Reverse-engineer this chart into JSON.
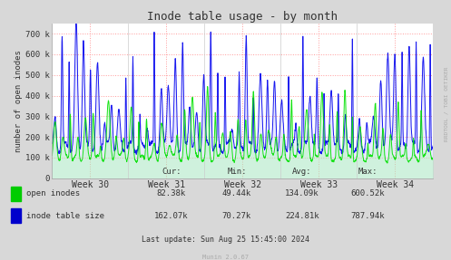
{
  "title": "Inode table usage - by month",
  "ylabel": "number of open inodes",
  "ylim": [
    0,
    750000
  ],
  "yticks": [
    0,
    100000,
    200000,
    300000,
    400000,
    500000,
    600000,
    700000
  ],
  "ytick_labels": [
    "0",
    "100 k",
    "200 k",
    "300 k",
    "400 k",
    "500 k",
    "600 k",
    "700 k"
  ],
  "week_labels": [
    "Week 30",
    "Week 31",
    "Week 32",
    "Week 33",
    "Week 34"
  ],
  "bg_color": "#d8d8d8",
  "plot_bg_color": "#ffffff",
  "grid_color": "#ff8080",
  "green_color": "#00e000",
  "blue_color": "#0000ee",
  "blue_fill_color": "#aaaaff",
  "green_fill_color": "#aaffaa",
  "legend_items": [
    "open inodes",
    "inode table size"
  ],
  "legend_colors": [
    "#00cc00",
    "#0000cc"
  ],
  "stats_cur": [
    "82.38k",
    "162.07k"
  ],
  "stats_min": [
    "49.44k",
    "70.27k"
  ],
  "stats_avg": [
    "134.09k",
    "224.81k"
  ],
  "stats_max": [
    "600.52k",
    "787.94k"
  ],
  "last_update": "Last update: Sun Aug 25 15:45:00 2024",
  "munin_label": "Munin 2.0.67",
  "rrdtool_label": "RRDTOOL / TOBI OETIKER",
  "title_color": "#333333",
  "text_color": "#333333",
  "axis_color": "#aaaaaa"
}
